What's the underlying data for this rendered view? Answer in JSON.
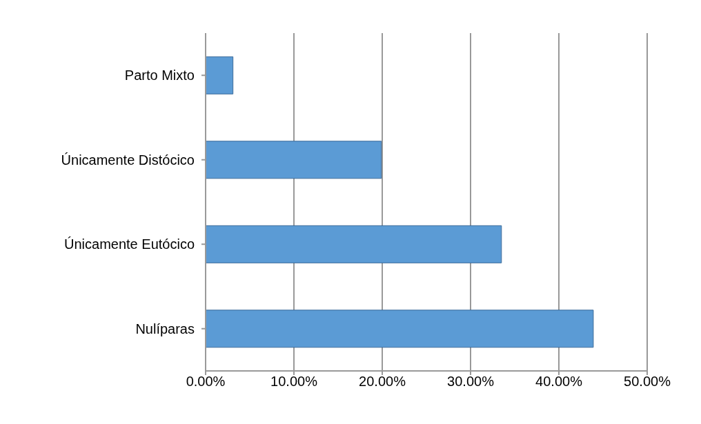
{
  "chart_data": {
    "type": "bar",
    "orientation": "horizontal",
    "categories": [
      "Parto Mixto",
      "Únicamente Distócico",
      "Únicamente Eutócico",
      "Nulíparas"
    ],
    "values": [
      3.1,
      19.9,
      33.5,
      43.9
    ],
    "color": "#5b9bd5",
    "xlim": [
      0,
      50
    ],
    "xticks": [
      {
        "value": 0,
        "label": "0.00%"
      },
      {
        "value": 10,
        "label": "10.00%"
      },
      {
        "value": 20,
        "label": "20.00%"
      },
      {
        "value": 30,
        "label": "30.00%"
      },
      {
        "value": 40,
        "label": "40.00%"
      },
      {
        "value": 50,
        "label": "50.00%"
      }
    ],
    "grid": "x"
  }
}
